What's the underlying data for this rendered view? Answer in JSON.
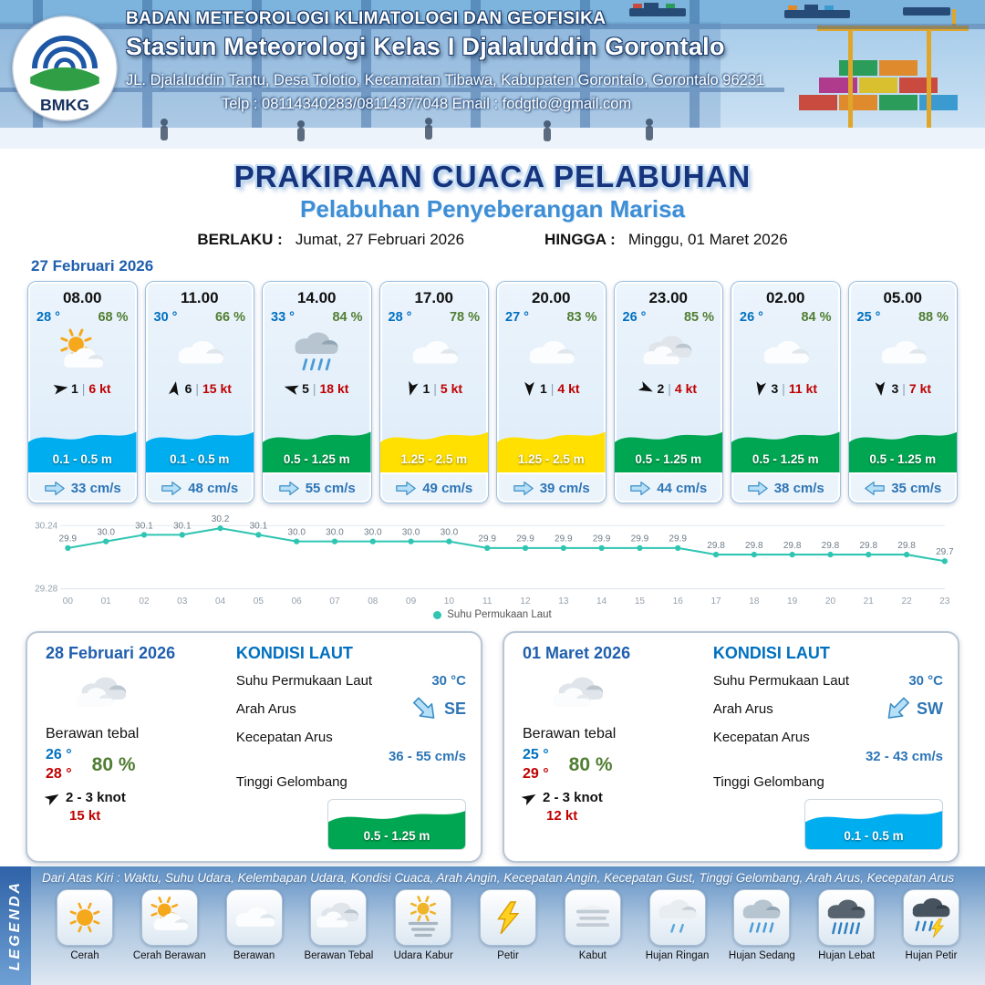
{
  "header": {
    "logo": "BMKG",
    "agency": "BADAN METEOROLOGI KLIMATOLOGI DAN GEOFISIKA",
    "station": "Stasiun Meteorologi Kelas I Djalaluddin Gorontalo",
    "address": "JL. Djalaluddin Tantu, Desa Tolotio, Kecamatan Tibawa, Kabupaten Gorontalo, Gorontalo 96231",
    "contact": "Telp : 08114340283/08114377048 Email : fodgtlo@gmail.com"
  },
  "title": {
    "main": "PRAKIRAAN CUACA PELABUHAN",
    "subtitle": "Pelabuhan Penyeberangan Marisa",
    "valid_label": "BERLAKU :",
    "valid_value": "Jumat, 27 Februari 2026",
    "until_label": "HINGGA :",
    "until_value": "Minggu, 01 Maret 2026"
  },
  "forecast_date": "27 Februari 2026",
  "hourly": [
    {
      "time": "08.00",
      "temp": "28 °",
      "humidity": "68 %",
      "icon": "cerah-berawan",
      "wind_dir_deg": 80,
      "wind_value": "1",
      "wind_speed": "6 kt",
      "wave_height": "0.1 - 0.5 m",
      "wave_color": "#00aeef",
      "current_speed": "33 cm/s",
      "current_dir": "right"
    },
    {
      "time": "11.00",
      "temp": "30 °",
      "humidity": "66 %",
      "icon": "berawan",
      "wind_dir_deg": 10,
      "wind_value": "6",
      "wind_speed": "15 kt",
      "wave_height": "0.1 - 0.5 m",
      "wave_color": "#00aeef",
      "current_speed": "48 cm/s",
      "current_dir": "right"
    },
    {
      "time": "14.00",
      "temp": "33 °",
      "humidity": "84 %",
      "icon": "hujan-sedang",
      "wind_dir_deg": 285,
      "wind_value": "5",
      "wind_speed": "18 kt",
      "wave_height": "0.5 - 1.25 m",
      "wave_color": "#00a651",
      "current_speed": "55 cm/s",
      "current_dir": "right"
    },
    {
      "time": "17.00",
      "temp": "28 °",
      "humidity": "78 %",
      "icon": "berawan",
      "wind_dir_deg": 195,
      "wind_value": "1",
      "wind_speed": "5 kt",
      "wave_height": "1.25 - 2.5 m",
      "wave_color": "#ffe000",
      "current_speed": "49 cm/s",
      "current_dir": "right"
    },
    {
      "time": "20.00",
      "temp": "27 °",
      "humidity": "83 %",
      "icon": "berawan",
      "wind_dir_deg": 180,
      "wind_value": "1",
      "wind_speed": "4 kt",
      "wave_height": "1.25 - 2.5 m",
      "wave_color": "#ffe000",
      "current_speed": "39 cm/s",
      "current_dir": "right"
    },
    {
      "time": "23.00",
      "temp": "26 °",
      "humidity": "85 %",
      "icon": "berawan-tebal",
      "wind_dir_deg": 115,
      "wind_value": "2",
      "wind_speed": "4 kt",
      "wave_height": "0.5 - 1.25 m",
      "wave_color": "#00a651",
      "current_speed": "44 cm/s",
      "current_dir": "right"
    },
    {
      "time": "02.00",
      "temp": "26 °",
      "humidity": "84 %",
      "icon": "berawan",
      "wind_dir_deg": 190,
      "wind_value": "3",
      "wind_speed": "11 kt",
      "wave_height": "0.5 - 1.25 m",
      "wave_color": "#00a651",
      "current_speed": "38 cm/s",
      "current_dir": "right"
    },
    {
      "time": "05.00",
      "temp": "25 °",
      "humidity": "88 %",
      "icon": "berawan",
      "wind_dir_deg": 175,
      "wind_value": "3",
      "wind_speed": "7 kt",
      "wave_height": "0.5 - 1.25 m",
      "wave_color": "#00a651",
      "current_speed": "35 cm/s",
      "current_dir": "left"
    }
  ],
  "chart_data": {
    "type": "line",
    "title": "",
    "xlabel": "",
    "ylabel": "",
    "legend": "Suhu Permukaan Laut",
    "x": [
      "00",
      "01",
      "02",
      "03",
      "04",
      "05",
      "06",
      "07",
      "08",
      "09",
      "10",
      "11",
      "12",
      "13",
      "14",
      "15",
      "16",
      "17",
      "18",
      "19",
      "20",
      "21",
      "22",
      "23"
    ],
    "values": [
      29.9,
      30.0,
      30.1,
      30.1,
      30.2,
      30.1,
      30.0,
      30.0,
      30.0,
      30.0,
      30.0,
      29.9,
      29.9,
      29.9,
      29.9,
      29.9,
      29.9,
      29.8,
      29.8,
      29.8,
      29.8,
      29.8,
      29.8,
      29.7
    ],
    "ylim": [
      29.28,
      30.24
    ],
    "line_color": "#2fc5b2",
    "grid": false,
    "legend_position": "bottom"
  },
  "daily": [
    {
      "date": "28 Februari 2026",
      "icon": "berawan-tebal",
      "condition": "Berawan tebal",
      "temp_min": "26 °",
      "temp_max": "28 °",
      "humidity": "80 %",
      "wind_range": "2 - 3 knot",
      "wind_gust": "15 kt",
      "sea_title": "KONDISI LAUT",
      "sst_label": "Suhu Permukaan Laut",
      "sst_value": "30 °C",
      "current_dir_label": "Arah Arus",
      "current_dir": "SE",
      "current_dir_deg": 135,
      "current_speed_label": "Kecepatan Arus",
      "current_speed": "36 - 55 cm/s",
      "wave_label": "Tinggi Gelombang",
      "wave_height": "0.5 - 1.25 m",
      "wave_color": "#00a651"
    },
    {
      "date": "01 Maret 2026",
      "icon": "berawan-tebal",
      "condition": "Berawan tebal",
      "temp_min": "25 °",
      "temp_max": "29 °",
      "humidity": "80 %",
      "wind_range": "2 - 3 knot",
      "wind_gust": "12 kt",
      "sea_title": "KONDISI LAUT",
      "sst_label": "Suhu Permukaan Laut",
      "sst_value": "30 °C",
      "current_dir_label": "Arah Arus",
      "current_dir": "SW",
      "current_dir_deg": 225,
      "current_speed_label": "Kecepatan Arus",
      "current_speed": "32 - 43 cm/s",
      "wave_label": "Tinggi Gelombang",
      "wave_height": "0.1 - 0.5 m",
      "wave_color": "#00aeef"
    }
  ],
  "legend": {
    "side_label": "LEGENDA",
    "note": "Dari Atas Kiri : Waktu, Suhu Udara, Kelembapan Udara, Kondisi Cuaca, Arah Angin, Kecepatan Angin, Kecepatan Gust, Tinggi Gelombang, Arah Arus, Kecepatan Arus",
    "items": [
      {
        "label": "Cerah",
        "icon": "cerah"
      },
      {
        "label": "Cerah Berawan",
        "icon": "cerah-berawan"
      },
      {
        "label": "Berawan",
        "icon": "berawan"
      },
      {
        "label": "Berawan Tebal",
        "icon": "berawan-tebal"
      },
      {
        "label": "Udara Kabur",
        "icon": "udara-kabur"
      },
      {
        "label": "Petir",
        "icon": "petir"
      },
      {
        "label": "Kabut",
        "icon": "kabut"
      },
      {
        "label": "Hujan Ringan",
        "icon": "hujan-ringan"
      },
      {
        "label": "Hujan Sedang",
        "icon": "hujan-sedang"
      },
      {
        "label": "Hujan Lebat",
        "icon": "hujan-lebat"
      },
      {
        "label": "Hujan Petir",
        "icon": "hujan-petir"
      }
    ]
  }
}
